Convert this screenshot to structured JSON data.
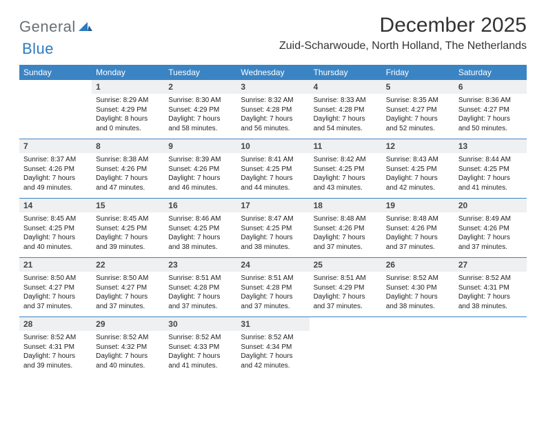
{
  "logo": {
    "general": "General",
    "blue": "Blue"
  },
  "title": "December 2025",
  "location": "Zuid-Scharwoude, North Holland, The Netherlands",
  "colors": {
    "header_bg": "#3b84c4",
    "header_text": "#ffffff",
    "daynum_bg": "#eef0f1",
    "rule": "#3b84c4",
    "logo_gray": "#6a6f73",
    "logo_blue": "#2a7bbf",
    "page_bg": "#ffffff"
  },
  "weekdays": [
    "Sunday",
    "Monday",
    "Tuesday",
    "Wednesday",
    "Thursday",
    "Friday",
    "Saturday"
  ],
  "weeks": [
    [
      {
        "empty": true
      },
      {
        "n": "1",
        "sr": "8:29 AM",
        "ss": "4:29 PM",
        "dl": "8 hours and 0 minutes."
      },
      {
        "n": "2",
        "sr": "8:30 AM",
        "ss": "4:29 PM",
        "dl": "7 hours and 58 minutes."
      },
      {
        "n": "3",
        "sr": "8:32 AM",
        "ss": "4:28 PM",
        "dl": "7 hours and 56 minutes."
      },
      {
        "n": "4",
        "sr": "8:33 AM",
        "ss": "4:28 PM",
        "dl": "7 hours and 54 minutes."
      },
      {
        "n": "5",
        "sr": "8:35 AM",
        "ss": "4:27 PM",
        "dl": "7 hours and 52 minutes."
      },
      {
        "n": "6",
        "sr": "8:36 AM",
        "ss": "4:27 PM",
        "dl": "7 hours and 50 minutes."
      }
    ],
    [
      {
        "n": "7",
        "sr": "8:37 AM",
        "ss": "4:26 PM",
        "dl": "7 hours and 49 minutes."
      },
      {
        "n": "8",
        "sr": "8:38 AM",
        "ss": "4:26 PM",
        "dl": "7 hours and 47 minutes."
      },
      {
        "n": "9",
        "sr": "8:39 AM",
        "ss": "4:26 PM",
        "dl": "7 hours and 46 minutes."
      },
      {
        "n": "10",
        "sr": "8:41 AM",
        "ss": "4:25 PM",
        "dl": "7 hours and 44 minutes."
      },
      {
        "n": "11",
        "sr": "8:42 AM",
        "ss": "4:25 PM",
        "dl": "7 hours and 43 minutes."
      },
      {
        "n": "12",
        "sr": "8:43 AM",
        "ss": "4:25 PM",
        "dl": "7 hours and 42 minutes."
      },
      {
        "n": "13",
        "sr": "8:44 AM",
        "ss": "4:25 PM",
        "dl": "7 hours and 41 minutes."
      }
    ],
    [
      {
        "n": "14",
        "sr": "8:45 AM",
        "ss": "4:25 PM",
        "dl": "7 hours and 40 minutes."
      },
      {
        "n": "15",
        "sr": "8:45 AM",
        "ss": "4:25 PM",
        "dl": "7 hours and 39 minutes."
      },
      {
        "n": "16",
        "sr": "8:46 AM",
        "ss": "4:25 PM",
        "dl": "7 hours and 38 minutes."
      },
      {
        "n": "17",
        "sr": "8:47 AM",
        "ss": "4:25 PM",
        "dl": "7 hours and 38 minutes."
      },
      {
        "n": "18",
        "sr": "8:48 AM",
        "ss": "4:26 PM",
        "dl": "7 hours and 37 minutes."
      },
      {
        "n": "19",
        "sr": "8:48 AM",
        "ss": "4:26 PM",
        "dl": "7 hours and 37 minutes."
      },
      {
        "n": "20",
        "sr": "8:49 AM",
        "ss": "4:26 PM",
        "dl": "7 hours and 37 minutes."
      }
    ],
    [
      {
        "n": "21",
        "sr": "8:50 AM",
        "ss": "4:27 PM",
        "dl": "7 hours and 37 minutes."
      },
      {
        "n": "22",
        "sr": "8:50 AM",
        "ss": "4:27 PM",
        "dl": "7 hours and 37 minutes."
      },
      {
        "n": "23",
        "sr": "8:51 AM",
        "ss": "4:28 PM",
        "dl": "7 hours and 37 minutes."
      },
      {
        "n": "24",
        "sr": "8:51 AM",
        "ss": "4:28 PM",
        "dl": "7 hours and 37 minutes."
      },
      {
        "n": "25",
        "sr": "8:51 AM",
        "ss": "4:29 PM",
        "dl": "7 hours and 37 minutes."
      },
      {
        "n": "26",
        "sr": "8:52 AM",
        "ss": "4:30 PM",
        "dl": "7 hours and 38 minutes."
      },
      {
        "n": "27",
        "sr": "8:52 AM",
        "ss": "4:31 PM",
        "dl": "7 hours and 38 minutes."
      }
    ],
    [
      {
        "n": "28",
        "sr": "8:52 AM",
        "ss": "4:31 PM",
        "dl": "7 hours and 39 minutes."
      },
      {
        "n": "29",
        "sr": "8:52 AM",
        "ss": "4:32 PM",
        "dl": "7 hours and 40 minutes."
      },
      {
        "n": "30",
        "sr": "8:52 AM",
        "ss": "4:33 PM",
        "dl": "7 hours and 41 minutes."
      },
      {
        "n": "31",
        "sr": "8:52 AM",
        "ss": "4:34 PM",
        "dl": "7 hours and 42 minutes."
      },
      {
        "empty": true
      },
      {
        "empty": true
      },
      {
        "empty": true
      }
    ]
  ],
  "labels": {
    "sunrise": "Sunrise:",
    "sunset": "Sunset:",
    "daylight": "Daylight:"
  }
}
